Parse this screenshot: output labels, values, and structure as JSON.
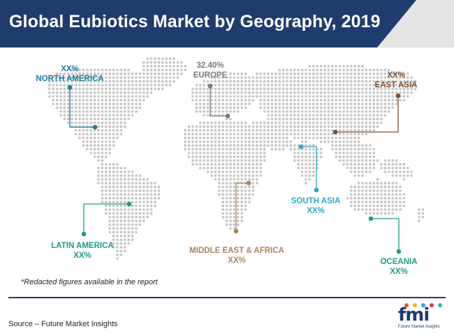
{
  "title": "Global Eubiotics Market by Geography, 2019",
  "colors": {
    "title_bar": "#1f3c6e",
    "map_dots": "#c4c4c4",
    "north_america": "#1a7ca0",
    "europe": "#7a7a7a",
    "east_asia": "#7a5130",
    "south_asia": "#2aa8c8",
    "middle_east_africa": "#a8845e",
    "latin_america": "#1a9c8c",
    "oceania": "#1aa083"
  },
  "regions": {
    "north_america": {
      "value": "XX%",
      "name": "NORTH AMERICA"
    },
    "europe": {
      "value": "32.40%",
      "name": "EUROPE"
    },
    "east_asia": {
      "value": "XX%",
      "name": "EAST ASIA"
    },
    "south_asia": {
      "name": "SOUTH ASIA",
      "value": "XX%"
    },
    "middle_east_africa": {
      "name": "MIDDLE EAST & AFRICA",
      "value": "XX%"
    },
    "latin_america": {
      "name": "LATIN AMERICA",
      "value": "XX%"
    },
    "oceania": {
      "name": "OCEANIA",
      "value": "XX%"
    }
  },
  "note": "*Redacted figures available in the report",
  "source": "Source – Future Market Insights",
  "logo": {
    "name": "fmi",
    "tagline": "Future Market Insights"
  }
}
